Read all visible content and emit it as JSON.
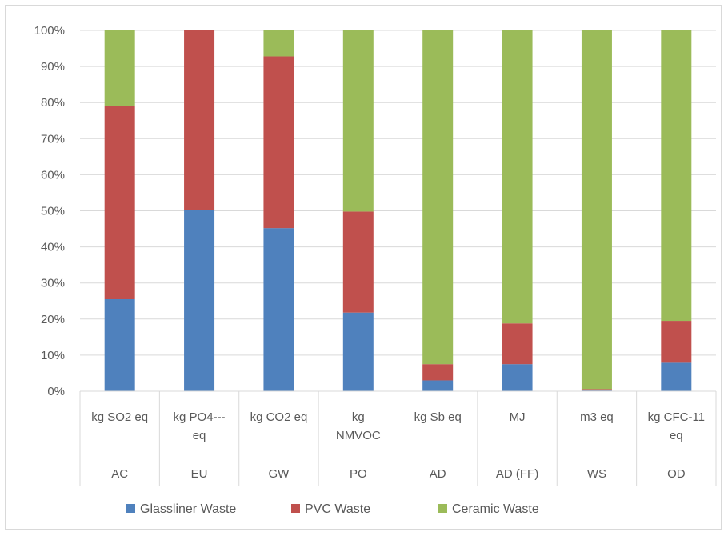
{
  "chart_data": {
    "type": "bar",
    "stacked": true,
    "percent": true,
    "ylim": [
      0,
      100
    ],
    "yticks": [
      "0%",
      "10%",
      "20%",
      "30%",
      "40%",
      "50%",
      "60%",
      "70%",
      "80%",
      "90%",
      "100%"
    ],
    "categories": [
      {
        "unit": [
          "kg SO2 eq"
        ],
        "code": "AC"
      },
      {
        "unit": [
          "kg PO4---",
          "eq"
        ],
        "code": "EU"
      },
      {
        "unit": [
          "kg CO2 eq"
        ],
        "code": "GW"
      },
      {
        "unit": [
          "kg",
          "NMVOC"
        ],
        "code": "PO"
      },
      {
        "unit": [
          "kg Sb eq"
        ],
        "code": "AD"
      },
      {
        "unit": [
          "MJ"
        ],
        "code": "AD (FF)"
      },
      {
        "unit": [
          "m3 eq"
        ],
        "code": "WS"
      },
      {
        "unit": [
          "kg CFC-11",
          "eq"
        ],
        "code": "OD"
      }
    ],
    "series": [
      {
        "name": "Glassliner Waste",
        "color": "#4f81bd",
        "values": [
          25.5,
          50.3,
          45.2,
          21.8,
          3.0,
          7.5,
          0.2,
          7.9
        ]
      },
      {
        "name": "PVC Waste",
        "color": "#c0504d",
        "values": [
          53.5,
          49.7,
          47.6,
          28.0,
          4.5,
          11.3,
          0.4,
          11.6
        ]
      },
      {
        "name": "Ceramic Waste",
        "color": "#9bbb59",
        "values": [
          21.0,
          0.0,
          7.2,
          50.2,
          92.5,
          81.2,
          99.4,
          80.5
        ]
      }
    ],
    "grid": true,
    "legend": "bottom"
  }
}
